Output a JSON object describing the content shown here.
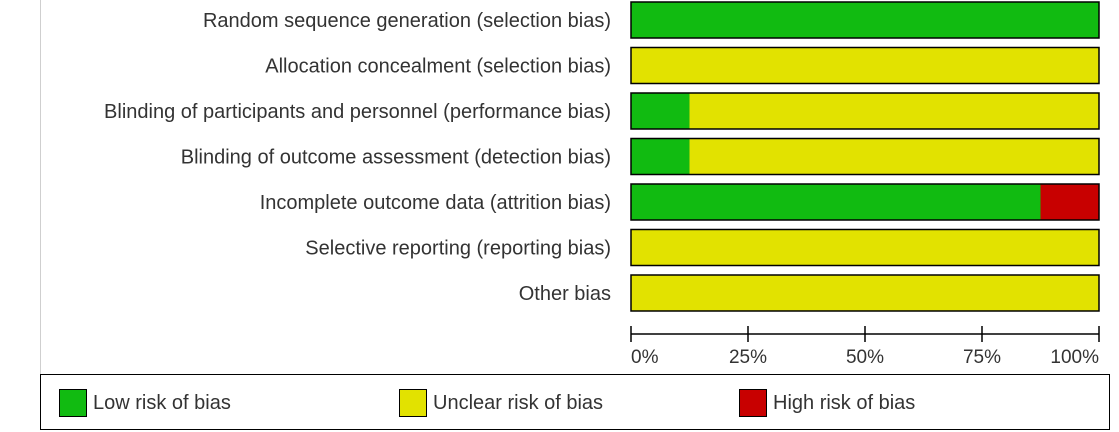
{
  "colors": {
    "low": "#11bb11",
    "unclear": "#e2e200",
    "high": "#c80000"
  },
  "chart_data": {
    "type": "bar",
    "orientation": "horizontal",
    "stacked": true,
    "categories": [
      "Random sequence generation (selection bias)",
      "Allocation concealment (selection bias)",
      "Blinding of participants and personnel (performance bias)",
      "Blinding of outcome assessment (detection bias)",
      "Incomplete outcome data (attrition bias)",
      "Selective reporting (reporting bias)",
      "Other bias"
    ],
    "series": [
      {
        "name": "Low risk of bias",
        "key": "low",
        "values": [
          100,
          0,
          12.5,
          12.5,
          87.5,
          0,
          0
        ]
      },
      {
        "name": "Unclear risk of bias",
        "key": "unclear",
        "values": [
          0,
          100,
          87.5,
          87.5,
          0,
          100,
          100
        ]
      },
      {
        "name": "High risk of bias",
        "key": "high",
        "values": [
          0,
          0,
          0,
          0,
          12.5,
          0,
          0
        ]
      }
    ],
    "xlim": [
      0,
      100
    ],
    "xticks": [
      0,
      25,
      50,
      75,
      100
    ],
    "xtick_labels": [
      "0%",
      "25%",
      "50%",
      "75%",
      "100%"
    ],
    "legend_position": "bottom",
    "grid": false
  }
}
